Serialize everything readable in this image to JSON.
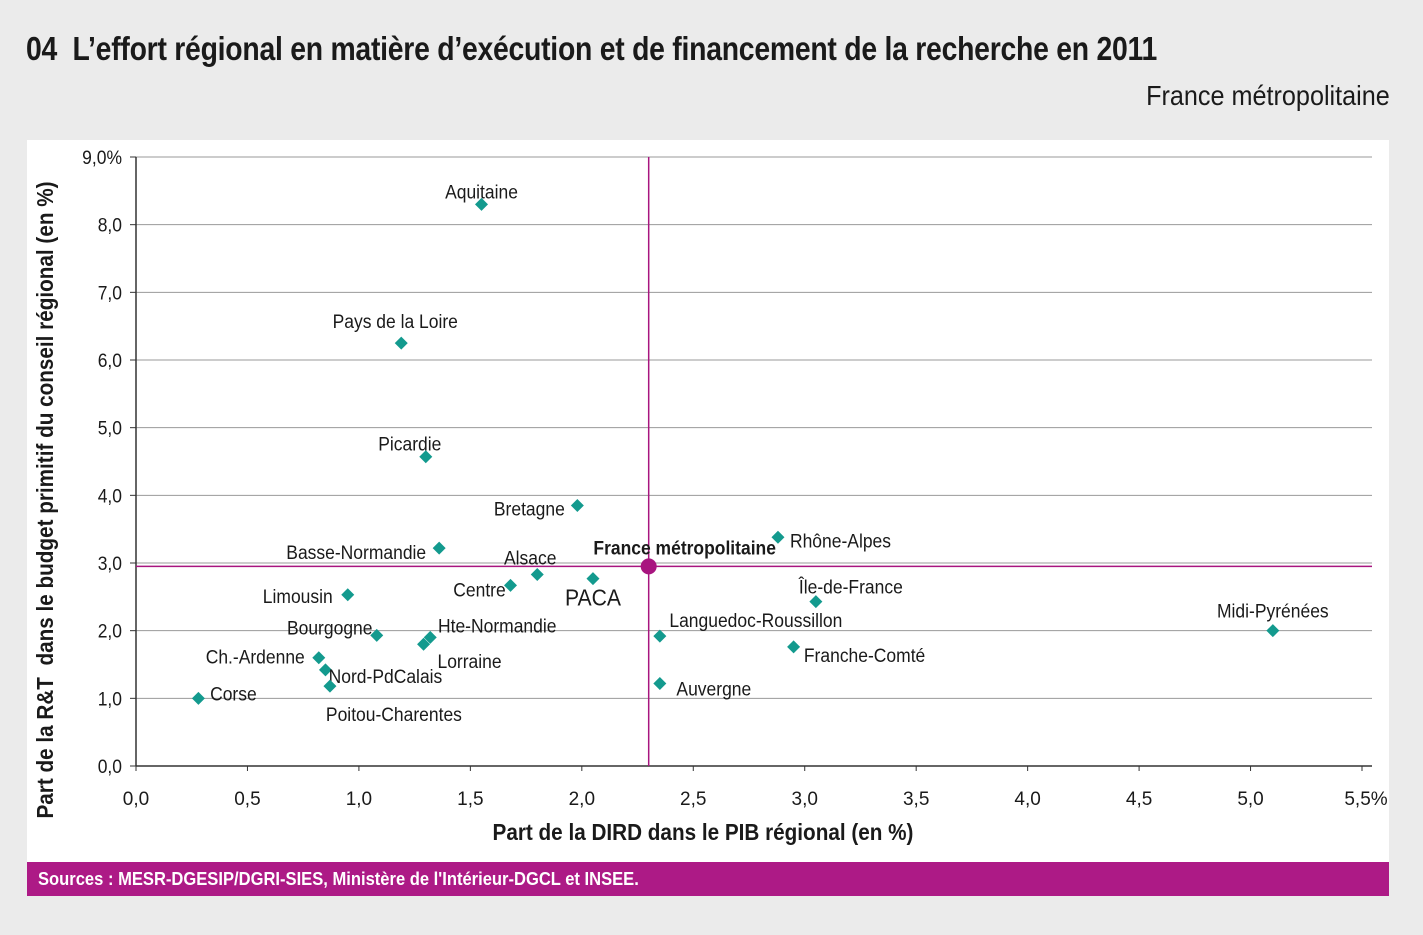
{
  "header": {
    "number": "04",
    "title": "L’effort régional en matière d’exécution et de financement de la recherche en 2011",
    "subtitle": "France métropolitaine"
  },
  "footer": {
    "sources": "Sources : MESR-DGESIP/DGRI-SIES, Ministère de l'Intérieur-DGCL et INSEE."
  },
  "colors": {
    "marker": "#139a8e",
    "reference": "#a8157f",
    "grid": "#9a9a9a",
    "source_bar": "#ad1a86"
  },
  "chart_data": {
    "type": "scatter",
    "xlabel": "Part de la DIRD dans le PIB régional (en %)",
    "ylabel": "Part de la R&T  dans le budget primitif du conseil régional (en %)",
    "xlim": [
      0,
      5.5
    ],
    "ylim": [
      0,
      9
    ],
    "x_ticks": [
      "0,0",
      "0,5",
      "1,0",
      "1,5",
      "2,0",
      "2,5",
      "3,0",
      "3,5",
      "4,0",
      "4,5",
      "5,0",
      "5,5%"
    ],
    "y_ticks": [
      "0,0",
      "1,0",
      "2,0",
      "3,0",
      "4,0",
      "5,0",
      "6,0",
      "7,0",
      "8,0",
      "9,0%"
    ],
    "grid": "horizontal",
    "reference": {
      "label": "France métropolitaine",
      "x": 2.3,
      "y": 2.95
    },
    "points": [
      {
        "label": "Aquitaine",
        "x": 1.55,
        "y": 8.3
      },
      {
        "label": "Pays de la Loire",
        "x": 1.19,
        "y": 6.25
      },
      {
        "label": "Picardie",
        "x": 1.3,
        "y": 4.57
      },
      {
        "label": "Bretagne",
        "x": 1.98,
        "y": 3.85
      },
      {
        "label": "Rhône-Alpes",
        "x": 2.88,
        "y": 3.38
      },
      {
        "label": "Basse-Normandie",
        "x": 1.36,
        "y": 3.22
      },
      {
        "label": "Alsace",
        "x": 1.8,
        "y": 2.83
      },
      {
        "label": "PACA",
        "x": 2.05,
        "y": 2.77
      },
      {
        "label": "Centre",
        "x": 1.68,
        "y": 2.67
      },
      {
        "label": "Limousin",
        "x": 0.95,
        "y": 2.53
      },
      {
        "label": "Île-de-France",
        "x": 3.05,
        "y": 2.43
      },
      {
        "label": "Midi-Pyrénées",
        "x": 5.1,
        "y": 2.0
      },
      {
        "label": "Bourgogne",
        "x": 1.08,
        "y": 1.93
      },
      {
        "label": "Hte-Normandie",
        "x": 1.32,
        "y": 1.9
      },
      {
        "label": "Languedoc-Roussillon",
        "x": 2.35,
        "y": 1.92
      },
      {
        "label": "Lorraine",
        "x": 1.29,
        "y": 1.8
      },
      {
        "label": "Franche-Comté",
        "x": 2.95,
        "y": 1.76
      },
      {
        "label": "Ch.-Ardenne",
        "x": 0.82,
        "y": 1.6
      },
      {
        "label": "Nord-PdCalais",
        "x": 0.85,
        "y": 1.42
      },
      {
        "label": "Auvergne",
        "x": 2.35,
        "y": 1.22
      },
      {
        "label": "Poitou-Charentes",
        "x": 0.87,
        "y": 1.18
      },
      {
        "label": "Corse",
        "x": 0.28,
        "y": 1.0
      }
    ]
  }
}
